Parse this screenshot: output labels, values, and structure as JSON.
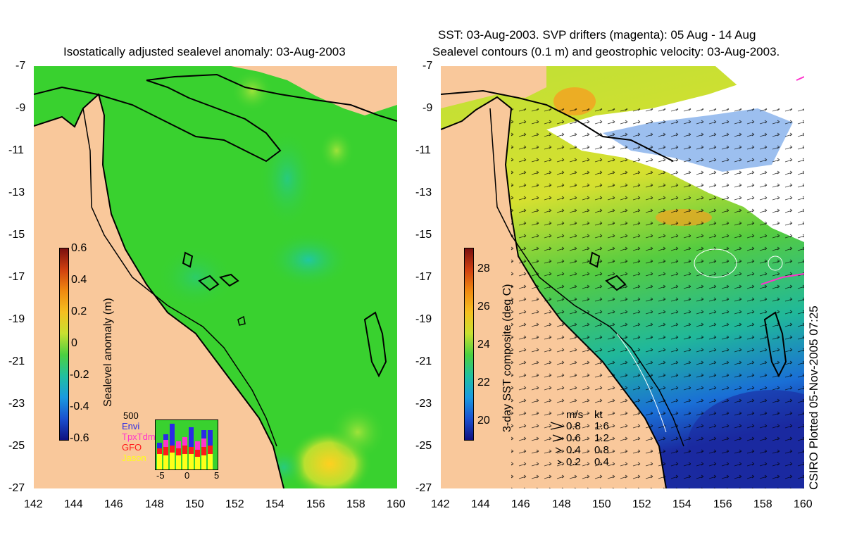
{
  "left_panel": {
    "title": "Isostatically adjusted sealevel anomaly: 03-Aug-2003",
    "colorbar": {
      "label": "Sealevel anomaly (m)",
      "ticks": [
        "0.6",
        "0.4",
        "0.2",
        "0",
        "-0.2",
        "-0.4",
        "-0.6"
      ]
    },
    "inset": {
      "top_label": "500",
      "sources": [
        {
          "name": "Envi",
          "color": "#2a2ae6"
        },
        {
          "name": "TpxTdm",
          "color": "#ff33cc"
        },
        {
          "name": "GFO",
          "color": "#ff1a1a"
        },
        {
          "name": "Jason",
          "color": "#ffff1a"
        }
      ],
      "x_ticks": [
        "-5",
        "0",
        "5"
      ]
    }
  },
  "right_panel": {
    "title_line1": "SST: 03-Aug-2003. SVP drifters (magenta): 05 Aug - 14 Aug",
    "title_line2": "Sealevel contours (0.1 m) and geostrophic velocity: 03-Aug-2003.",
    "colorbar": {
      "label": "3-day SST composite (deg C)",
      "ticks": [
        "28",
        "26",
        "24",
        "22",
        "20"
      ]
    },
    "velocity_legend": {
      "header_ms": "m/s",
      "header_kt": "kt",
      "rows": [
        {
          "ms": "0.8",
          "kt": "1.6"
        },
        {
          "ms": "0.6",
          "kt": "1.2"
        },
        {
          "ms": "0.4",
          "kt": "0.8"
        },
        {
          "ms": "0.2",
          "kt": "0.4"
        }
      ]
    }
  },
  "axes": {
    "lat_ticks": [
      "-7",
      "-9",
      "-11",
      "-13",
      "-15",
      "-17",
      "-19",
      "-21",
      "-23",
      "-25",
      "-27"
    ],
    "lon_ticks": [
      "142",
      "144",
      "146",
      "148",
      "150",
      "152",
      "154",
      "156",
      "158",
      "160"
    ]
  },
  "credit": "CSIRO Plotted 05-Nov-2005 07:25",
  "colors": {
    "land": "#f9c89b",
    "sla_background": "#39d12f",
    "sst_background": "#2fc84a",
    "coast": "#000000"
  }
}
